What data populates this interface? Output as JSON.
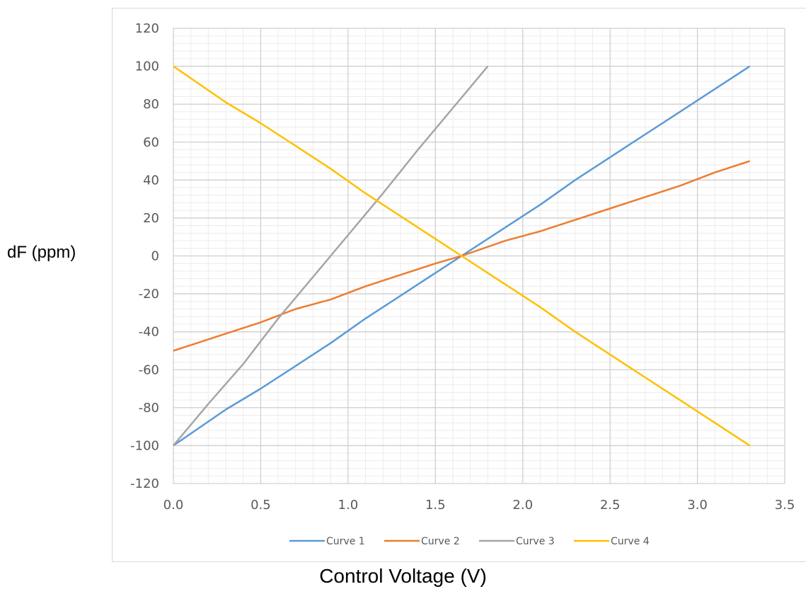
{
  "chart_data": {
    "type": "line",
    "title": "",
    "xlabel": "Control Voltage (V)",
    "ylabel": "dF (ppm)",
    "xlim": [
      0.0,
      3.5
    ],
    "ylim": [
      -120,
      120
    ],
    "x_ticks": [
      "0.0",
      "0.5",
      "1.0",
      "1.5",
      "2.0",
      "2.5",
      "3.0",
      "3.5"
    ],
    "y_ticks": [
      "120",
      "100",
      "80",
      "60",
      "40",
      "20",
      "0",
      "-20",
      "-40",
      "-60",
      "-80",
      "-100",
      "-120"
    ],
    "grid": true,
    "legend_position": "bottom",
    "series": [
      {
        "name": "Curve 1",
        "color": "#5b9bd5",
        "x": [
          0.0,
          0.3,
          0.5,
          0.7,
          0.9,
          1.1,
          1.3,
          1.5,
          1.65,
          1.9,
          2.1,
          2.3,
          2.5,
          2.7,
          2.9,
          3.1,
          3.3
        ],
        "y": [
          -100,
          -81,
          -70,
          -58,
          -46,
          -33,
          -21,
          -9,
          0,
          15,
          27,
          40,
          52,
          64,
          76,
          88,
          100
        ]
      },
      {
        "name": "Curve 2",
        "color": "#ed7d31",
        "x": [
          0.0,
          0.3,
          0.5,
          0.7,
          0.9,
          1.1,
          1.3,
          1.5,
          1.65,
          1.9,
          2.1,
          2.3,
          2.5,
          2.7,
          2.9,
          3.1,
          3.3
        ],
        "y": [
          -50,
          -41,
          -35,
          -28,
          -23,
          -16,
          -10,
          -4,
          0,
          8,
          13,
          19,
          25,
          31,
          37,
          44,
          50
        ]
      },
      {
        "name": "Curve 3",
        "color": "#a5a5a5",
        "x": [
          0.0,
          0.2,
          0.4,
          0.6,
          0.8,
          0.9,
          1.0,
          1.2,
          1.4,
          1.6,
          1.7,
          1.8
        ],
        "y": [
          -100,
          -78,
          -57,
          -33,
          -11,
          0,
          11,
          33,
          56,
          78,
          89,
          100
        ]
      },
      {
        "name": "Curve 4",
        "color": "#ffc000",
        "x": [
          0.0,
          0.3,
          0.5,
          0.7,
          0.9,
          1.1,
          1.3,
          1.5,
          1.65,
          1.9,
          2.1,
          2.3,
          2.5,
          2.7,
          2.9,
          3.1,
          3.3
        ],
        "y": [
          100,
          81,
          70,
          58,
          46,
          33,
          21,
          9,
          0,
          -15,
          -27,
          -40,
          -52,
          -64,
          -76,
          -88,
          -100
        ]
      }
    ]
  }
}
